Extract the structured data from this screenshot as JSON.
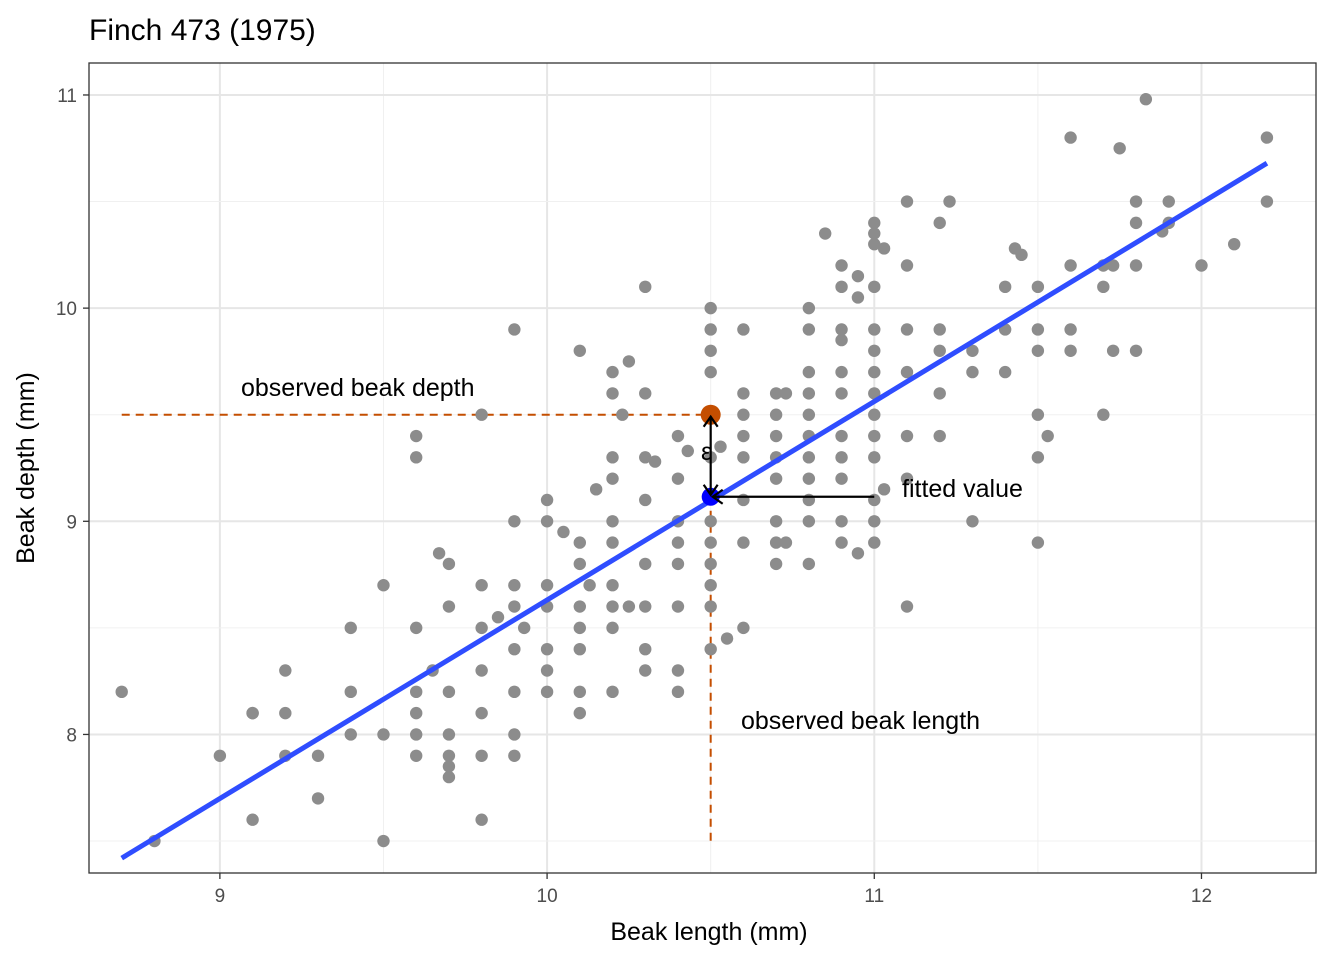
{
  "chart_data": {
    "type": "scatter",
    "title": "Finch 473 (1975)",
    "xlabel": "Beak length (mm)",
    "ylabel": "Beak depth (mm)",
    "xlim": [
      8.6,
      12.35
    ],
    "ylim": [
      7.35,
      11.15
    ],
    "x_ticks": [
      9,
      10,
      11,
      12
    ],
    "y_ticks": [
      8,
      9,
      10,
      11
    ],
    "x_tick_labels": [
      "9",
      "10",
      "11",
      "12"
    ],
    "y_tick_labels": [
      "8",
      "9",
      "10",
      "11"
    ],
    "grid": true,
    "point_color": "#8c8c8c",
    "line_color": "#2f4dff",
    "highlight_color": "#c44e00",
    "fitted_color": "#0000ff",
    "points": [
      [
        8.7,
        8.2
      ],
      [
        8.8,
        7.5
      ],
      [
        9.0,
        7.9
      ],
      [
        9.1,
        8.1
      ],
      [
        9.1,
        8.1
      ],
      [
        9.1,
        7.6
      ],
      [
        9.2,
        8.3
      ],
      [
        9.2,
        8.1
      ],
      [
        9.2,
        7.9
      ],
      [
        9.3,
        7.9
      ],
      [
        9.3,
        7.7
      ],
      [
        9.4,
        8.5
      ],
      [
        9.4,
        8.2
      ],
      [
        9.4,
        8.0
      ],
      [
        9.5,
        8.7
      ],
      [
        9.5,
        8.0
      ],
      [
        9.5,
        7.5
      ],
      [
        9.6,
        9.4
      ],
      [
        9.6,
        9.3
      ],
      [
        9.6,
        8.5
      ],
      [
        9.6,
        8.2
      ],
      [
        9.6,
        8.1
      ],
      [
        9.6,
        8.0
      ],
      [
        9.6,
        7.9
      ],
      [
        9.65,
        8.3
      ],
      [
        9.67,
        8.85
      ],
      [
        9.7,
        8.8
      ],
      [
        9.7,
        8.6
      ],
      [
        9.7,
        8.2
      ],
      [
        9.7,
        8.0
      ],
      [
        9.7,
        7.9
      ],
      [
        9.7,
        7.85
      ],
      [
        9.7,
        7.8
      ],
      [
        9.8,
        9.5
      ],
      [
        9.8,
        8.7
      ],
      [
        9.8,
        8.5
      ],
      [
        9.8,
        8.3
      ],
      [
        9.8,
        8.1
      ],
      [
        9.8,
        7.9
      ],
      [
        9.8,
        7.6
      ],
      [
        9.85,
        8.55
      ],
      [
        9.9,
        9.9
      ],
      [
        9.9,
        9.0
      ],
      [
        9.9,
        8.7
      ],
      [
        9.9,
        8.6
      ],
      [
        9.9,
        8.4
      ],
      [
        9.9,
        8.2
      ],
      [
        9.9,
        8.0
      ],
      [
        9.9,
        7.9
      ],
      [
        9.93,
        8.5
      ],
      [
        10.0,
        9.1
      ],
      [
        10.0,
        9.0
      ],
      [
        10.0,
        8.7
      ],
      [
        10.0,
        8.6
      ],
      [
        10.0,
        8.4
      ],
      [
        10.0,
        8.3
      ],
      [
        10.0,
        8.2
      ],
      [
        10.05,
        8.95
      ],
      [
        10.1,
        9.8
      ],
      [
        10.1,
        8.9
      ],
      [
        10.1,
        8.8
      ],
      [
        10.1,
        8.6
      ],
      [
        10.1,
        8.5
      ],
      [
        10.1,
        8.4
      ],
      [
        10.1,
        8.2
      ],
      [
        10.1,
        8.1
      ],
      [
        10.13,
        8.7
      ],
      [
        10.15,
        9.15
      ],
      [
        10.2,
        9.7
      ],
      [
        10.2,
        9.6
      ],
      [
        10.2,
        9.3
      ],
      [
        10.2,
        9.2
      ],
      [
        10.2,
        9.0
      ],
      [
        10.2,
        8.9
      ],
      [
        10.2,
        8.7
      ],
      [
        10.2,
        8.6
      ],
      [
        10.2,
        8.5
      ],
      [
        10.2,
        8.2
      ],
      [
        10.23,
        9.5
      ],
      [
        10.25,
        9.75
      ],
      [
        10.25,
        8.6
      ],
      [
        10.3,
        10.1
      ],
      [
        10.3,
        9.6
      ],
      [
        10.3,
        9.3
      ],
      [
        10.3,
        9.1
      ],
      [
        10.3,
        8.8
      ],
      [
        10.3,
        8.6
      ],
      [
        10.3,
        8.4
      ],
      [
        10.3,
        8.3
      ],
      [
        10.33,
        9.28
      ],
      [
        10.4,
        9.4
      ],
      [
        10.4,
        9.2
      ],
      [
        10.4,
        9.0
      ],
      [
        10.4,
        8.9
      ],
      [
        10.4,
        8.8
      ],
      [
        10.4,
        8.6
      ],
      [
        10.4,
        8.3
      ],
      [
        10.4,
        8.2
      ],
      [
        10.43,
        9.33
      ],
      [
        10.5,
        10.0
      ],
      [
        10.5,
        9.9
      ],
      [
        10.5,
        9.8
      ],
      [
        10.5,
        9.7
      ],
      [
        10.5,
        9.3
      ],
      [
        10.5,
        9.0
      ],
      [
        10.5,
        8.9
      ],
      [
        10.5,
        8.8
      ],
      [
        10.5,
        8.7
      ],
      [
        10.5,
        8.6
      ],
      [
        10.5,
        8.4
      ],
      [
        10.53,
        9.35
      ],
      [
        10.55,
        8.45
      ],
      [
        10.6,
        9.9
      ],
      [
        10.6,
        9.6
      ],
      [
        10.6,
        9.5
      ],
      [
        10.6,
        9.4
      ],
      [
        10.6,
        9.3
      ],
      [
        10.6,
        9.1
      ],
      [
        10.6,
        8.9
      ],
      [
        10.6,
        8.5
      ],
      [
        10.7,
        9.6
      ],
      [
        10.7,
        9.5
      ],
      [
        10.7,
        9.4
      ],
      [
        10.7,
        9.3
      ],
      [
        10.7,
        9.2
      ],
      [
        10.7,
        9.0
      ],
      [
        10.7,
        8.9
      ],
      [
        10.7,
        8.8
      ],
      [
        10.73,
        9.6
      ],
      [
        10.73,
        8.9
      ],
      [
        10.8,
        10.0
      ],
      [
        10.8,
        9.9
      ],
      [
        10.8,
        9.7
      ],
      [
        10.8,
        9.6
      ],
      [
        10.8,
        9.5
      ],
      [
        10.8,
        9.4
      ],
      [
        10.8,
        9.3
      ],
      [
        10.8,
        9.2
      ],
      [
        10.8,
        9.1
      ],
      [
        10.8,
        9.0
      ],
      [
        10.8,
        8.8
      ],
      [
        10.85,
        10.35
      ],
      [
        10.9,
        10.2
      ],
      [
        10.9,
        10.1
      ],
      [
        10.9,
        9.9
      ],
      [
        10.9,
        9.85
      ],
      [
        10.9,
        9.7
      ],
      [
        10.9,
        9.6
      ],
      [
        10.9,
        9.4
      ],
      [
        10.9,
        9.3
      ],
      [
        10.9,
        9.2
      ],
      [
        10.9,
        9.0
      ],
      [
        10.9,
        8.9
      ],
      [
        10.95,
        10.15
      ],
      [
        10.95,
        10.05
      ],
      [
        10.95,
        8.85
      ],
      [
        11.0,
        10.4
      ],
      [
        11.0,
        10.35
      ],
      [
        11.0,
        10.3
      ],
      [
        11.0,
        10.1
      ],
      [
        11.0,
        9.9
      ],
      [
        11.0,
        9.8
      ],
      [
        11.0,
        9.7
      ],
      [
        11.0,
        9.6
      ],
      [
        11.0,
        9.5
      ],
      [
        11.0,
        9.4
      ],
      [
        11.0,
        9.3
      ],
      [
        11.0,
        9.1
      ],
      [
        11.0,
        9.0
      ],
      [
        11.0,
        8.9
      ],
      [
        11.03,
        10.28
      ],
      [
        11.03,
        9.15
      ],
      [
        11.1,
        10.5
      ],
      [
        11.1,
        10.2
      ],
      [
        11.1,
        9.9
      ],
      [
        11.1,
        9.7
      ],
      [
        11.1,
        9.4
      ],
      [
        11.1,
        9.2
      ],
      [
        11.1,
        8.6
      ],
      [
        11.2,
        10.4
      ],
      [
        11.2,
        9.9
      ],
      [
        11.2,
        9.8
      ],
      [
        11.2,
        9.6
      ],
      [
        11.2,
        9.4
      ],
      [
        11.23,
        10.5
      ],
      [
        11.3,
        9.8
      ],
      [
        11.3,
        9.7
      ],
      [
        11.3,
        9.0
      ],
      [
        11.4,
        10.1
      ],
      [
        11.4,
        9.9
      ],
      [
        11.4,
        9.7
      ],
      [
        11.43,
        10.28
      ],
      [
        11.45,
        10.25
      ],
      [
        11.5,
        10.1
      ],
      [
        11.5,
        9.9
      ],
      [
        11.5,
        9.8
      ],
      [
        11.5,
        9.5
      ],
      [
        11.5,
        9.3
      ],
      [
        11.5,
        8.9
      ],
      [
        11.53,
        9.4
      ],
      [
        11.6,
        10.8
      ],
      [
        11.6,
        10.2
      ],
      [
        11.6,
        9.9
      ],
      [
        11.6,
        9.8
      ],
      [
        11.7,
        10.2
      ],
      [
        11.7,
        10.1
      ],
      [
        11.7,
        9.5
      ],
      [
        11.73,
        10.2
      ],
      [
        11.73,
        9.8
      ],
      [
        11.75,
        10.75
      ],
      [
        11.8,
        10.5
      ],
      [
        11.8,
        10.4
      ],
      [
        11.8,
        10.2
      ],
      [
        11.8,
        9.8
      ],
      [
        11.83,
        10.98
      ],
      [
        11.88,
        10.36
      ],
      [
        11.9,
        10.5
      ],
      [
        11.9,
        10.4
      ],
      [
        12.0,
        10.2
      ],
      [
        12.1,
        10.3
      ],
      [
        12.2,
        10.8
      ],
      [
        12.2,
        10.5
      ]
    ],
    "fit_line": {
      "x": [
        8.7,
        12.2
      ],
      "y": [
        7.42,
        10.68
      ]
    },
    "observed_point": {
      "x": 10.5,
      "y": 9.5
    },
    "fitted_point": {
      "x": 10.5,
      "y": 9.115
    },
    "annotations": {
      "observed_depth": "observed beak depth",
      "observed_length": "observed beak length",
      "fitted_value": "fitted value",
      "epsilon": "ε"
    }
  }
}
